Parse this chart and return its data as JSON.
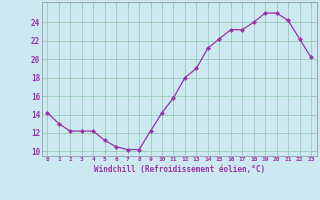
{
  "x": [
    0,
    1,
    2,
    3,
    4,
    5,
    6,
    7,
    8,
    9,
    10,
    11,
    12,
    13,
    14,
    15,
    16,
    17,
    18,
    19,
    20,
    21,
    22,
    23
  ],
  "y": [
    14.2,
    13.0,
    12.2,
    12.2,
    12.2,
    11.2,
    10.5,
    10.2,
    10.2,
    12.2,
    14.2,
    15.8,
    18.0,
    19.0,
    21.2,
    22.2,
    23.2,
    23.2,
    24.0,
    25.0,
    25.0,
    24.2,
    22.2,
    20.2
  ],
  "xlabel": "Windchill (Refroidissement éolien,°C)",
  "xlim": [
    -0.5,
    23.5
  ],
  "ylim": [
    9.5,
    26.2
  ],
  "yticks": [
    10,
    12,
    14,
    16,
    18,
    20,
    22,
    24
  ],
  "xticks": [
    0,
    1,
    2,
    3,
    4,
    5,
    6,
    7,
    8,
    9,
    10,
    11,
    12,
    13,
    14,
    15,
    16,
    17,
    18,
    19,
    20,
    21,
    22,
    23
  ],
  "line_color": "#9933aa",
  "marker_color": "#9933aa",
  "bg_color": "#cce8f0",
  "grid_color": "#99ccbb",
  "tick_label_color": "#9933aa",
  "axis_label_color": "#9933aa",
  "spine_color": "#9999aa"
}
